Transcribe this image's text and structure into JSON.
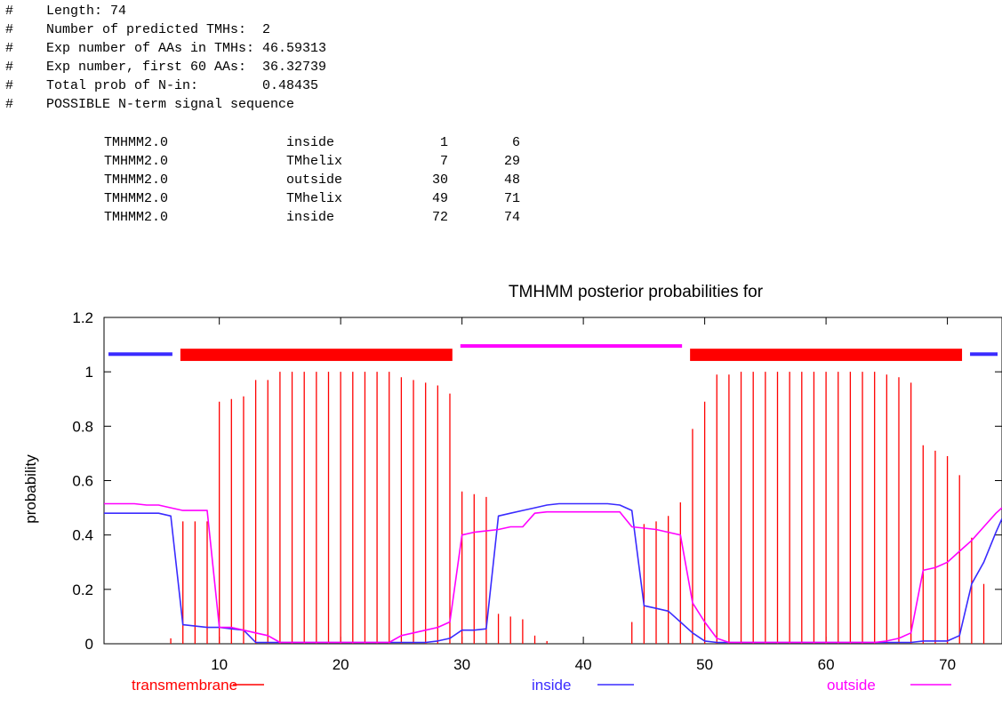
{
  "summary": {
    "hash": "#",
    "lines": [
      "Length: 74",
      "Number of predicted TMHs:  2",
      "Exp number of AAs in TMHs: 46.59313",
      "Exp number, first 60 AAs:  36.32739",
      "Total prob of N-in:        0.48435",
      "POSSIBLE N-term signal sequence"
    ]
  },
  "topology_table": [
    {
      "source": "TMHMM2.0",
      "region": "inside",
      "start": "1",
      "end": "6"
    },
    {
      "source": "TMHMM2.0",
      "region": "TMhelix",
      "start": "7",
      "end": "29"
    },
    {
      "source": "TMHMM2.0",
      "region": "outside",
      "start": "30",
      "end": "48"
    },
    {
      "source": "TMHMM2.0",
      "region": "TMhelix",
      "start": "49",
      "end": "71"
    },
    {
      "source": "TMHMM2.0",
      "region": "inside",
      "start": "72",
      "end": "74"
    }
  ],
  "colors": {
    "transmembrane": "#ff0000",
    "inside": "#3a2bff",
    "outside": "#ff00ff"
  },
  "chart_data": {
    "type": "line",
    "title": "TMHMM posterior probabilities for",
    "xlabel": "",
    "ylabel": "probability",
    "xlim": [
      0.5,
      74.5
    ],
    "ylim": [
      0,
      1.2
    ],
    "xticks": [
      "10",
      "20",
      "30",
      "40",
      "50",
      "60",
      "70"
    ],
    "xtick_values": [
      10,
      20,
      30,
      40,
      50,
      60,
      70
    ],
    "yticks": [
      "0",
      "0.2",
      "0.4",
      "0.6",
      "0.8",
      "1",
      "1.2"
    ],
    "ytick_values": [
      0,
      0.2,
      0.4,
      0.6,
      0.8,
      1.0,
      1.2
    ],
    "legend": [
      {
        "name": "transmembrane",
        "color": "#ff0000"
      },
      {
        "name": "inside",
        "color": "#3a2bff"
      },
      {
        "name": "outside",
        "color": "#ff00ff"
      }
    ],
    "topology_bars": [
      {
        "region": "inside",
        "start": 1,
        "end": 6
      },
      {
        "region": "TMhelix",
        "start": 7,
        "end": 29
      },
      {
        "region": "outside",
        "start": 30,
        "end": 48
      },
      {
        "region": "TMhelix",
        "start": 49,
        "end": 71
      },
      {
        "region": "inside",
        "start": 72,
        "end": 74
      }
    ],
    "series": [
      {
        "name": "transmembrane",
        "style": "impulses",
        "x": [
          1,
          2,
          3,
          4,
          5,
          6,
          7,
          8,
          9,
          10,
          11,
          12,
          13,
          14,
          15,
          16,
          17,
          18,
          19,
          20,
          21,
          22,
          23,
          24,
          25,
          26,
          27,
          28,
          29,
          30,
          31,
          32,
          33,
          34,
          35,
          36,
          37,
          38,
          39,
          40,
          41,
          42,
          43,
          44,
          45,
          46,
          47,
          48,
          49,
          50,
          51,
          52,
          53,
          54,
          55,
          56,
          57,
          58,
          59,
          60,
          61,
          62,
          63,
          64,
          65,
          66,
          67,
          68,
          69,
          70,
          71,
          72,
          73,
          74
        ],
        "y": [
          0,
          0,
          0,
          0,
          0,
          0.02,
          0.45,
          0.45,
          0.45,
          0.89,
          0.9,
          0.91,
          0.97,
          0.97,
          1.0,
          1.0,
          1.0,
          1.0,
          1.0,
          1.0,
          1.0,
          1.0,
          1.0,
          1.0,
          0.98,
          0.97,
          0.96,
          0.95,
          0.92,
          0.56,
          0.55,
          0.54,
          0.11,
          0.1,
          0.09,
          0.03,
          0.01,
          0,
          0,
          0,
          0,
          0,
          0,
          0.08,
          0.44,
          0.45,
          0.47,
          0.52,
          0.79,
          0.89,
          0.99,
          0.99,
          1.0,
          1.0,
          1.0,
          1.0,
          1.0,
          1.0,
          1.0,
          1.0,
          1.0,
          1.0,
          1.0,
          1.0,
          0.99,
          0.98,
          0.96,
          0.73,
          0.71,
          0.69,
          0.62,
          0.39,
          0.22,
          0
        ]
      },
      {
        "name": "inside",
        "style": "line",
        "x": [
          0.5,
          1,
          2,
          3,
          4,
          5,
          6,
          7,
          8,
          9,
          10,
          11,
          12,
          13,
          14,
          15,
          16,
          17,
          18,
          19,
          20,
          21,
          22,
          23,
          24,
          25,
          26,
          27,
          28,
          29,
          30,
          31,
          32,
          33,
          34,
          35,
          36,
          37,
          38,
          39,
          40,
          41,
          42,
          43,
          44,
          45,
          46,
          47,
          48,
          49,
          50,
          51,
          52,
          53,
          54,
          55,
          56,
          57,
          58,
          59,
          60,
          61,
          62,
          63,
          64,
          65,
          66,
          67,
          68,
          69,
          70,
          71,
          72,
          73,
          74,
          74.5
        ],
        "y": [
          0.48,
          0.48,
          0.48,
          0.48,
          0.48,
          0.48,
          0.47,
          0.07,
          0.065,
          0.06,
          0.06,
          0.055,
          0.05,
          0.005,
          0.005,
          0.005,
          0.005,
          0.005,
          0.005,
          0.005,
          0.005,
          0.005,
          0.005,
          0.005,
          0.005,
          0.005,
          0.005,
          0.005,
          0.01,
          0.02,
          0.05,
          0.05,
          0.055,
          0.47,
          0.48,
          0.49,
          0.5,
          0.51,
          0.515,
          0.515,
          0.515,
          0.515,
          0.515,
          0.51,
          0.49,
          0.14,
          0.13,
          0.12,
          0.08,
          0.04,
          0.01,
          0.005,
          0.005,
          0.005,
          0.005,
          0.005,
          0.005,
          0.005,
          0.005,
          0.005,
          0.005,
          0.005,
          0.005,
          0.005,
          0.005,
          0.005,
          0.005,
          0.005,
          0.01,
          0.01,
          0.01,
          0.03,
          0.22,
          0.3,
          0.41,
          0.46
        ]
      },
      {
        "name": "outside",
        "style": "line",
        "x": [
          0.5,
          1,
          2,
          3,
          4,
          5,
          6,
          7,
          8,
          9,
          10,
          11,
          12,
          13,
          14,
          15,
          16,
          17,
          18,
          19,
          20,
          21,
          22,
          23,
          24,
          25,
          26,
          27,
          28,
          29,
          30,
          31,
          32,
          33,
          34,
          35,
          36,
          37,
          38,
          39,
          40,
          41,
          42,
          43,
          44,
          45,
          46,
          47,
          48,
          49,
          50,
          51,
          52,
          53,
          54,
          55,
          56,
          57,
          58,
          59,
          60,
          61,
          62,
          63,
          64,
          65,
          66,
          67,
          68,
          69,
          70,
          71,
          72,
          73,
          74,
          74.5
        ],
        "y": [
          0.515,
          0.515,
          0.515,
          0.515,
          0.51,
          0.51,
          0.5,
          0.49,
          0.49,
          0.49,
          0.06,
          0.06,
          0.05,
          0.04,
          0.03,
          0.005,
          0.005,
          0.005,
          0.005,
          0.005,
          0.005,
          0.005,
          0.005,
          0.005,
          0.005,
          0.03,
          0.04,
          0.05,
          0.06,
          0.08,
          0.4,
          0.41,
          0.415,
          0.42,
          0.43,
          0.43,
          0.48,
          0.485,
          0.485,
          0.485,
          0.485,
          0.485,
          0.485,
          0.485,
          0.43,
          0.425,
          0.42,
          0.41,
          0.4,
          0.15,
          0.08,
          0.02,
          0.005,
          0.005,
          0.005,
          0.005,
          0.005,
          0.005,
          0.005,
          0.005,
          0.005,
          0.005,
          0.005,
          0.005,
          0.005,
          0.01,
          0.02,
          0.04,
          0.27,
          0.28,
          0.3,
          0.34,
          0.38,
          0.43,
          0.48,
          0.5
        ]
      }
    ]
  }
}
